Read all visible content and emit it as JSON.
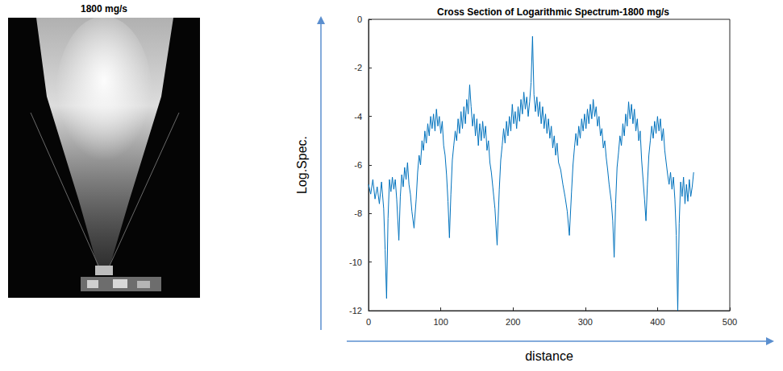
{
  "photo": {
    "title": "1800 mg/s"
  },
  "chart_data": {
    "type": "line",
    "title": "Cross Section of Logarithmic Spectrum-1800 mg/s",
    "x_label": "distance",
    "y_label": "Log.Spec.",
    "color": "#0072bd",
    "x": [
      0,
      3,
      6,
      9,
      12,
      15,
      18,
      21,
      23,
      25,
      27,
      29,
      31,
      33,
      35,
      37,
      39,
      42,
      44,
      46,
      48,
      50,
      52,
      54,
      56,
      58,
      60,
      63,
      66,
      68,
      70,
      72,
      74,
      76,
      78,
      80,
      82,
      84,
      86,
      88,
      90,
      92,
      94,
      96,
      98,
      100,
      102,
      104,
      106,
      108,
      110,
      112,
      114,
      116,
      118,
      120,
      122,
      124,
      126,
      128,
      130,
      132,
      134,
      136,
      138,
      140,
      142,
      144,
      146,
      148,
      150,
      152,
      154,
      156,
      158,
      160,
      162,
      164,
      166,
      168,
      170,
      172,
      175,
      178,
      181,
      183,
      185,
      187,
      189,
      191,
      193,
      195,
      197,
      199,
      201,
      203,
      205,
      207,
      209,
      211,
      213,
      215,
      217,
      219,
      221,
      223,
      225,
      227,
      229,
      231,
      233,
      235,
      237,
      239,
      241,
      243,
      245,
      247,
      249,
      251,
      253,
      255,
      257,
      259,
      261,
      263,
      266,
      269,
      272,
      275,
      278,
      281,
      283,
      285,
      287,
      289,
      291,
      293,
      295,
      297,
      299,
      301,
      303,
      305,
      307,
      309,
      311,
      313,
      315,
      317,
      319,
      321,
      323,
      325,
      327,
      329,
      331,
      333,
      336,
      338,
      340,
      342,
      344,
      346,
      348,
      350,
      352,
      354,
      356,
      358,
      360,
      362,
      364,
      366,
      368,
      370,
      372,
      374,
      376,
      378,
      380,
      382,
      384,
      386,
      388,
      390,
      392,
      394,
      396,
      398,
      400,
      402,
      404,
      406,
      408,
      410,
      412,
      414,
      416,
      418,
      420,
      422,
      424,
      426,
      428,
      430,
      432,
      434,
      436,
      438,
      440,
      442,
      444,
      446,
      448,
      450
    ],
    "values": [
      -6.8,
      -7.2,
      -6.6,
      -7.4,
      -6.9,
      -7.6,
      -6.7,
      -7.8,
      -9.5,
      -11.5,
      -8.2,
      -6.6,
      -7.1,
      -6.5,
      -7.0,
      -6.6,
      -7.4,
      -9.1,
      -7.3,
      -6.4,
      -6.9,
      -6.1,
      -6.6,
      -5.9,
      -6.8,
      -7.2,
      -7.9,
      -8.6,
      -7.4,
      -6.3,
      -5.6,
      -6.0,
      -5.0,
      -5.4,
      -4.6,
      -5.1,
      -4.3,
      -4.8,
      -4.0,
      -4.5,
      -3.9,
      -4.6,
      -3.7,
      -4.4,
      -4.0,
      -4.7,
      -4.2,
      -5.2,
      -5.6,
      -6.4,
      -7.5,
      -9.0,
      -7.2,
      -5.8,
      -5.2,
      -4.6,
      -5.0,
      -4.1,
      -4.7,
      -3.8,
      -4.5,
      -3.6,
      -4.3,
      -3.3,
      -3.9,
      -2.7,
      -3.6,
      -4.4,
      -3.9,
      -4.8,
      -4.1,
      -5.2,
      -4.3,
      -5.0,
      -4.2,
      -4.9,
      -4.4,
      -5.4,
      -5.0,
      -5.9,
      -6.3,
      -6.9,
      -7.8,
      -9.3,
      -7.0,
      -5.8,
      -5.2,
      -4.5,
      -5.1,
      -4.2,
      -4.8,
      -4.0,
      -4.6,
      -3.5,
      -4.3,
      -3.8,
      -4.5,
      -3.6,
      -4.2,
      -3.3,
      -3.9,
      -3.0,
      -3.7,
      -3.2,
      -4.0,
      -3.4,
      -2.6,
      -0.7,
      -3.1,
      -3.8,
      -3.2,
      -4.0,
      -3.4,
      -4.3,
      -3.6,
      -4.5,
      -3.9,
      -4.7,
      -4.1,
      -4.9,
      -4.4,
      -5.3,
      -4.8,
      -5.6,
      -5.1,
      -5.9,
      -6.2,
      -6.8,
      -7.3,
      -7.9,
      -8.9,
      -7.1,
      -6.0,
      -5.3,
      -4.7,
      -5.2,
      -4.4,
      -4.9,
      -4.1,
      -4.6,
      -3.9,
      -4.5,
      -3.7,
      -4.3,
      -3.5,
      -4.1,
      -3.3,
      -4.0,
      -3.6,
      -4.4,
      -4.0,
      -4.8,
      -4.5,
      -5.3,
      -5.0,
      -5.7,
      -6.2,
      -6.8,
      -7.5,
      -8.3,
      -9.8,
      -7.6,
      -6.1,
      -5.5,
      -4.8,
      -5.2,
      -4.3,
      -4.8,
      -3.9,
      -4.4,
      -3.4,
      -4.1,
      -3.5,
      -4.3,
      -3.7,
      -4.6,
      -4.1,
      -5.0,
      -4.6,
      -5.8,
      -6.6,
      -7.4,
      -8.3,
      -6.8,
      -5.6,
      -5.0,
      -4.4,
      -4.9,
      -4.2,
      -4.7,
      -4.0,
      -4.6,
      -4.1,
      -5.0,
      -4.5,
      -5.4,
      -5.9,
      -6.4,
      -6.8,
      -6.3,
      -7.0,
      -6.5,
      -7.4,
      -8.9,
      -12.0,
      -8.4,
      -6.7,
      -7.3,
      -6.5,
      -7.6,
      -6.8,
      -7.5,
      -6.6,
      -7.3,
      -6.9,
      -6.3
    ],
    "xlim": [
      0,
      500
    ],
    "xticks": [
      0,
      100,
      200,
      300,
      400,
      500
    ],
    "ylim": [
      -12,
      0
    ],
    "yticks": [
      -12,
      -10,
      -8,
      -6,
      -4,
      -2,
      0
    ],
    "grid": false
  }
}
